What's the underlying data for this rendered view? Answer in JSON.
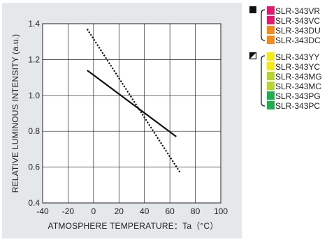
{
  "chart_data": {
    "type": "line",
    "xlabel": "ATMOSPHERE TEMPERATURE：Ta（°C）",
    "ylabel": "RELATIVE LUMINOUS INTENSITY (a.u.)",
    "xlim": [
      -40,
      100
    ],
    "ylim": [
      0.4,
      1.4
    ],
    "x_ticks": [
      "-40",
      "-20",
      "0",
      "20",
      "40",
      "60",
      "80",
      "100"
    ],
    "y_ticks": [
      "0.4",
      "0.6",
      "0.8",
      "1.0",
      "1.2",
      "1.4"
    ],
    "grid": true,
    "series": [
      {
        "style": "solid",
        "marker": "filled-square",
        "x": [
          -5,
          65
        ],
        "y": [
          1.14,
          0.77
        ],
        "members": [
          "SLR-343VR",
          "SLR-343VC",
          "SLR-343DU",
          "SLR-343DC"
        ]
      },
      {
        "style": "dotted",
        "marker": "half-filled-square",
        "x": [
          -5,
          68
        ],
        "y": [
          1.37,
          0.57
        ],
        "members": [
          "SLR-343YY",
          "SLR-343YC",
          "SLR-343MG",
          "SLR-343MC",
          "SLR-343PG",
          "SLR-343PC"
        ]
      }
    ]
  },
  "legend": {
    "groups": [
      {
        "marker": "filled-square",
        "items": [
          {
            "label": "SLR-343VR",
            "color": "#e6176e"
          },
          {
            "label": "SLR-343VC",
            "color": "#e6176e"
          },
          {
            "label": "SLR-343DU",
            "color": "#f28c1e"
          },
          {
            "label": "SLR-343DC",
            "color": "#f28c1e"
          }
        ]
      },
      {
        "marker": "half-filled-square",
        "items": [
          {
            "label": "SLR-343YY",
            "color": "#f5ea14"
          },
          {
            "label": "SLR-343YC",
            "color": "#f5ea14"
          },
          {
            "label": "SLR-343MG",
            "color": "#b8d432"
          },
          {
            "label": "SLR-343MC",
            "color": "#b8d432"
          },
          {
            "label": "SLR-343PG",
            "color": "#1fae4e"
          },
          {
            "label": "SLR-343PC",
            "color": "#1fae4e"
          }
        ]
      }
    ]
  },
  "colors": {
    "panel_bg": "#e4e8eb",
    "plot_bg": "#ffffff",
    "line": "#111111",
    "grid": "#222222"
  }
}
